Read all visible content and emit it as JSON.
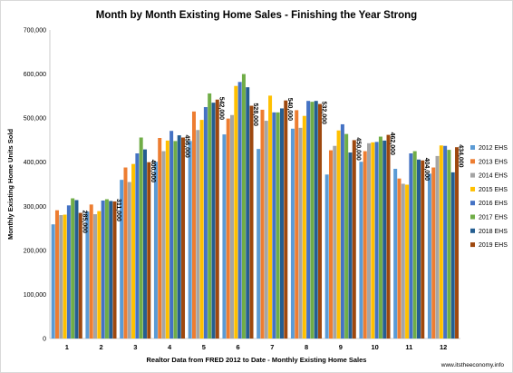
{
  "chart_data": {
    "type": "bar",
    "title": "Month by Month Existing Home Sales - Finishing the Year Strong",
    "xlabel": "Realtor Data from FRED 2012 to Date - Monthly Existing Home Sales",
    "ylabel": "Monthly Existing Home Units Sold",
    "ylim": [
      0,
      700000
    ],
    "yticks": [
      "0",
      "100,000",
      "200,000",
      "300,000",
      "400,000",
      "500,000",
      "600,000",
      "700,000"
    ],
    "grid": false,
    "legend_position": "right",
    "categories": [
      "1",
      "2",
      "3",
      "4",
      "5",
      "6",
      "7",
      "8",
      "9",
      "10",
      "11",
      "12"
    ],
    "series": [
      {
        "name": "2012 EHS",
        "color": "#5b9bd5",
        "values": [
          259000,
          288000,
          360000,
          401000,
          448000,
          463000,
          430000,
          476000,
          372000,
          401000,
          385000,
          374000
        ]
      },
      {
        "name": "2013 EHS",
        "color": "#ed7d31",
        "values": [
          291000,
          304000,
          388000,
          455000,
          515000,
          499000,
          519000,
          518000,
          427000,
          425000,
          363000,
          388000
        ]
      },
      {
        "name": "2014 EHS",
        "color": "#a5a5a5",
        "values": [
          280000,
          282000,
          355000,
          425000,
          473000,
          507000,
          494000,
          478000,
          437000,
          443000,
          351000,
          414000
        ]
      },
      {
        "name": "2015 EHS",
        "color": "#ffc000",
        "values": [
          281000,
          289000,
          396000,
          449000,
          496000,
          573000,
          551000,
          505000,
          472000,
          445000,
          349000,
          438000
        ]
      },
      {
        "name": "2016 EHS",
        "color": "#4472c4",
        "values": [
          302000,
          313000,
          420000,
          471000,
          525000,
          582000,
          513000,
          539000,
          486000,
          446000,
          420000,
          437000
        ]
      },
      {
        "name": "2017 EHS",
        "color": "#70ad47",
        "values": [
          318000,
          316000,
          456000,
          448000,
          556000,
          600000,
          513000,
          537000,
          464000,
          458000,
          425000,
          428000
        ]
      },
      {
        "name": "2018 EHS",
        "color": "#255e91",
        "values": [
          314000,
          312000,
          429000,
          461000,
          535000,
          570000,
          522000,
          539000,
          422000,
          449000,
          406000,
          377000
        ]
      },
      {
        "name": "2019 EHS",
        "color": "#9e480e",
        "values": [
          285000,
          311000,
          400000,
          456000,
          542000,
          528000,
          540000,
          532000,
          450000,
          462000,
          404000,
          434000
        ]
      }
    ],
    "data_labels": [
      {
        "category": "1",
        "series": "2019 EHS",
        "text": "285,000"
      },
      {
        "category": "2",
        "series": "2019 EHS",
        "text": "311,000"
      },
      {
        "category": "3",
        "series": "2019 EHS",
        "text": "400,000"
      },
      {
        "category": "4",
        "series": "2019 EHS",
        "text": "456,000"
      },
      {
        "category": "5",
        "series": "2019 EHS",
        "text": "542,000"
      },
      {
        "category": "6",
        "series": "2019 EHS",
        "text": "528,000"
      },
      {
        "category": "7",
        "series": "2019 EHS",
        "text": "540,000"
      },
      {
        "category": "8",
        "series": "2019 EHS",
        "text": "532,000"
      },
      {
        "category": "9",
        "series": "2019 EHS",
        "text": "450,000"
      },
      {
        "category": "10",
        "series": "2019 EHS",
        "text": "462,000"
      },
      {
        "category": "11",
        "series": "2019 EHS",
        "text": "404,000"
      },
      {
        "category": "12",
        "series": "2019 EHS",
        "text": "434,000"
      }
    ],
    "watermark": "www.itstheeconomy.info"
  }
}
